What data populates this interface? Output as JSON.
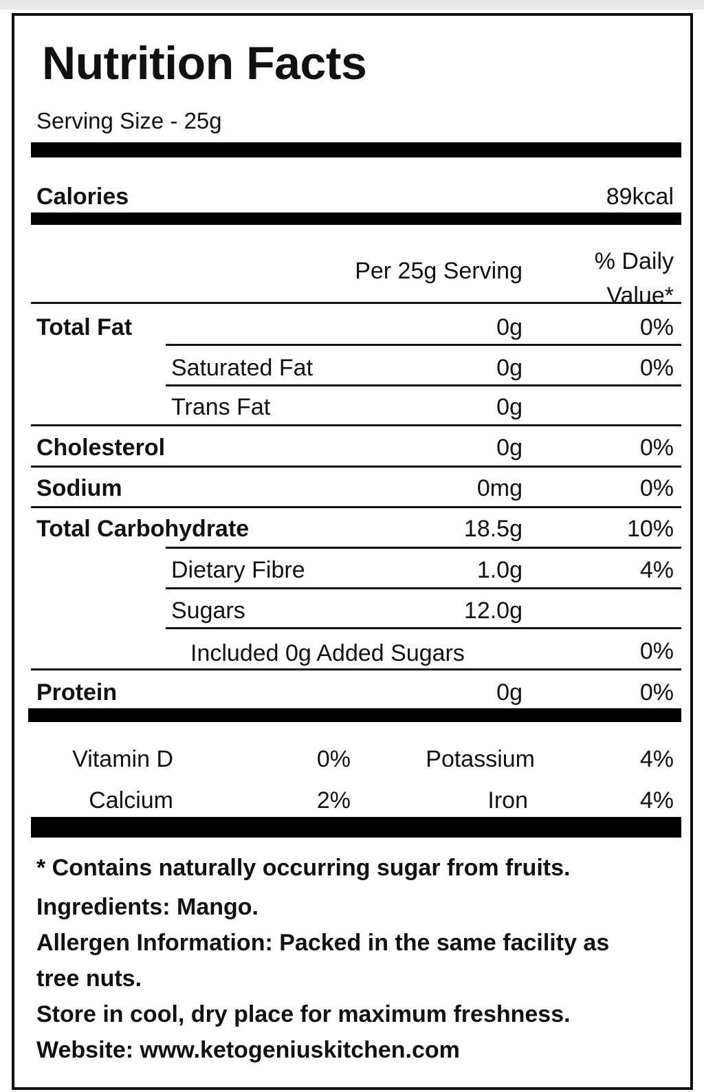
{
  "title": "Nutrition Facts",
  "serving_size": "Serving Size - 25g",
  "calories": {
    "label": "Calories",
    "value": "89kcal"
  },
  "header": {
    "per_serving": "Per 25g Serving",
    "daily_value": "% Daily\nValue*"
  },
  "nutrients": [
    {
      "label": "Total Fat",
      "amount": "0g",
      "dv": "0%"
    },
    {
      "label": "Saturated Fat",
      "amount": "0g",
      "dv": "0%"
    },
    {
      "label": "Trans Fat",
      "amount": "0g",
      "dv": ""
    },
    {
      "label": "Cholesterol",
      "amount": "0g",
      "dv": "0%"
    },
    {
      "label": "Sodium",
      "amount": "0mg",
      "dv": "0%"
    },
    {
      "label": "Total Carbohydrate",
      "amount": "18.5g",
      "dv": "10%"
    },
    {
      "label": "Dietary Fibre",
      "amount": "1.0g",
      "dv": "4%"
    },
    {
      "label": "Sugars",
      "amount": "12.0g",
      "dv": ""
    },
    {
      "label": "Included 0g Added Sugars",
      "amount": "",
      "dv": "0%"
    },
    {
      "label": "Protein",
      "amount": "0g",
      "dv": "0%"
    }
  ],
  "vitamins": [
    {
      "label": "Vitamin D",
      "value": "0%"
    },
    {
      "label": "Potassium",
      "value": "4%"
    },
    {
      "label": "Calcium",
      "value": "2%"
    },
    {
      "label": "Iron",
      "value": "4%"
    }
  ],
  "footnotes": {
    "sugar_note": "* Contains naturally occurring sugar from fruits.",
    "ingredients": "Ingredients: Mango.",
    "allergen_line1": "Allergen Information: Packed in the same facility as",
    "allergen_line2": "tree nuts.",
    "storage": "Store in cool, dry place for maximum freshness.",
    "website": "Website: www.ketogeniuskitchen.com"
  }
}
